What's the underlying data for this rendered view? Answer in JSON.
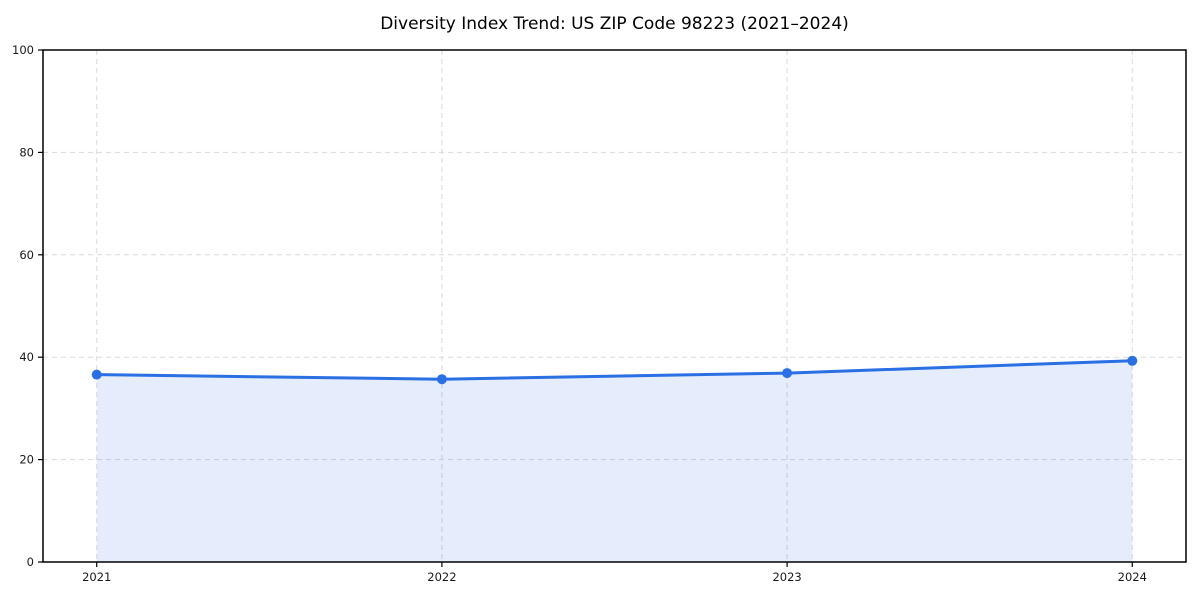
{
  "chart_data": {
    "type": "line",
    "title": "Diversity Index Trend: US ZIP Code 98223 (2021–2024)",
    "categories": [
      "2021",
      "2022",
      "2023",
      "2024"
    ],
    "series": [
      {
        "name": "Diversity Index",
        "values": [
          36.6,
          35.7,
          36.9,
          39.3
        ]
      }
    ],
    "xlabel": "",
    "ylabel": "",
    "ylim": [
      0,
      100
    ],
    "yticks": [
      0,
      20,
      40,
      60,
      80,
      100
    ],
    "grid": true,
    "grid_style": "dashed",
    "legend_position": "none",
    "area_fill_to_zero": true,
    "colors": {
      "line": "#2a6fe3",
      "marker": "#2a6fe3",
      "fill": "#2a6fe3",
      "fill_opacity": 0.12,
      "grid": "#d9d9d9",
      "spine": "#000000",
      "tick_text": "#1a1a1a",
      "background": "#ffffff"
    }
  }
}
